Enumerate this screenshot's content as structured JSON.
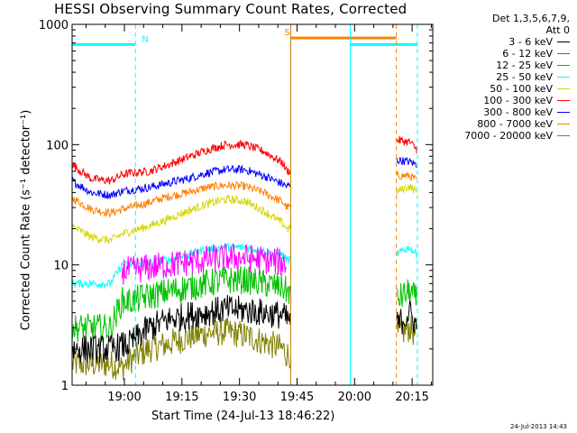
{
  "title": "HESSI Observing Summary Count Rates, Corrected",
  "xlabel": "Start Time (24-Jul-13 18:46:22)",
  "ylabel": "Corrected Count Rate (s⁻¹ detector⁻¹)",
  "timestamp": "24-Jul-2013 14:43",
  "legend": {
    "header1": "Det 1,3,5,6,7,9,",
    "header2": "Att 0"
  },
  "chart_data": {
    "type": "line",
    "title": "HESSI Observing Summary Count Rates, Corrected",
    "xlabel": "Start Time (24-Jul-13 18:46:22)",
    "ylabel": "Corrected Count Rate (s⁻¹ detector⁻¹)",
    "y_scale": "log",
    "ylim": [
      1,
      1000
    ],
    "xlim_minutes": [
      0,
      94
    ],
    "x_ticks": [
      "19:00",
      "19:15",
      "19:30",
      "19:45",
      "20:00",
      "20:15"
    ],
    "x_tick_minutes": [
      13.63,
      28.63,
      43.63,
      58.63,
      73.63,
      88.63
    ],
    "y_ticks": [
      "1",
      "10",
      "100",
      "1000"
    ],
    "y_tick_values": [
      1,
      10,
      100,
      1000
    ],
    "grid": false,
    "legend_position": "right",
    "x_unit": "minutes after 18:46:22",
    "series": [
      {
        "name": "3 - 6 keV",
        "color": "#000000",
        "x": [
          0,
          10,
          15,
          20,
          25,
          30,
          35,
          40,
          45,
          50,
          55,
          56,
          84,
          88,
          90
        ],
        "values": [
          2,
          2,
          2.2,
          3,
          3.5,
          3.8,
          4,
          4.3,
          4.2,
          4,
          3.8,
          3.5,
          3,
          4,
          3
        ]
      },
      {
        "name": "6 - 12 keV",
        "color": "#ff00ff",
        "x": [
          13,
          15,
          20,
          25,
          30,
          35,
          40,
          45,
          50,
          55,
          56
        ],
        "values": [
          9,
          9,
          9.5,
          10,
          10.5,
          11,
          11.5,
          11.5,
          11,
          10.5,
          10
        ]
      },
      {
        "name": "12 - 25 keV",
        "color": "#00c000",
        "x": [
          0,
          10,
          13,
          15,
          20,
          25,
          30,
          35,
          40,
          45,
          50,
          55,
          56,
          84,
          88,
          90
        ],
        "values": [
          3,
          3,
          5,
          5,
          5.5,
          6,
          6.5,
          7,
          7.5,
          7.5,
          7,
          6.5,
          6,
          5,
          6,
          5
        ]
      },
      {
        "name": "25 - 50 keV",
        "color": "#00ffff",
        "x": [
          0,
          5,
          10,
          13,
          15,
          20,
          25,
          30,
          35,
          40,
          45,
          50,
          55,
          56,
          84,
          88,
          90
        ],
        "values": [
          7,
          7,
          7,
          10,
          10,
          10.5,
          11,
          12,
          13.5,
          14,
          14,
          13,
          12,
          11,
          12,
          14,
          12
        ]
      },
      {
        "name": "50 - 100 keV",
        "color": "#d6d600",
        "x": [
          0,
          5,
          10,
          13,
          15,
          20,
          25,
          30,
          35,
          40,
          45,
          50,
          55,
          56,
          84,
          88,
          90
        ],
        "values": [
          21,
          17,
          16,
          18,
          19,
          21,
          24,
          28,
          32,
          35,
          34,
          28,
          22,
          20,
          40,
          45,
          40
        ]
      },
      {
        "name": "100 - 300 keV",
        "color": "#ff0000",
        "x": [
          0,
          5,
          10,
          13,
          15,
          20,
          25,
          30,
          35,
          40,
          45,
          50,
          55,
          56,
          84,
          88,
          90
        ],
        "values": [
          68,
          52,
          50,
          56,
          58,
          60,
          68,
          78,
          90,
          100,
          100,
          88,
          70,
          60,
          110,
          105,
          90
        ]
      },
      {
        "name": "300 - 800 keV",
        "color": "#0000ff",
        "x": [
          0,
          5,
          10,
          13,
          15,
          20,
          25,
          30,
          35,
          40,
          45,
          50,
          55,
          56,
          84,
          88,
          90
        ],
        "values": [
          50,
          40,
          38,
          41,
          42,
          44,
          48,
          52,
          58,
          62,
          62,
          55,
          47,
          45,
          75,
          72,
          68
        ]
      },
      {
        "name": "800 - 7000 keV",
        "color": "#ff8000",
        "x": [
          0,
          5,
          10,
          13,
          15,
          20,
          25,
          30,
          35,
          40,
          45,
          50,
          55,
          56,
          84,
          88,
          90
        ],
        "values": [
          36,
          29,
          27,
          29,
          30,
          33,
          37,
          40,
          44,
          46,
          45,
          40,
          33,
          30,
          55,
          55,
          50
        ]
      },
      {
        "name": "7000 - 20000 keV",
        "color": "#808000",
        "x": [
          0,
          10,
          13,
          15,
          20,
          25,
          30,
          35,
          40,
          45,
          50,
          55,
          56,
          84,
          88,
          90
        ],
        "values": [
          1.5,
          1.5,
          1.4,
          1.6,
          2,
          2.2,
          2.5,
          2.7,
          2.8,
          2.6,
          2.3,
          2,
          1.8,
          2.5,
          3,
          2.5
        ]
      }
    ],
    "flag_bars": [
      {
        "label": "N",
        "color": "#00ffff",
        "y_value": 680,
        "x_range": [
          0,
          16.5
        ]
      },
      {
        "label": "S",
        "color": "#ff8000",
        "y_value": 770,
        "x_range": [
          57,
          84.5
        ]
      },
      {
        "label": "",
        "color": "#00ffff",
        "y_value": 680,
        "x_range": [
          72.5,
          90
        ]
      }
    ],
    "vertical_markers": [
      {
        "x": 16.5,
        "color": "#00ffff",
        "style": "dashed"
      },
      {
        "x": 57,
        "color": "#d08000",
        "style": "solid"
      },
      {
        "x": 72.5,
        "color": "#00ffff",
        "style": "solid"
      },
      {
        "x": 84.5,
        "color": "#ff8000",
        "style": "dashed"
      },
      {
        "x": 90,
        "color": "#00ffff",
        "style": "dashed"
      }
    ],
    "gaps_minutes": [
      [
        57,
        84.5
      ]
    ]
  }
}
